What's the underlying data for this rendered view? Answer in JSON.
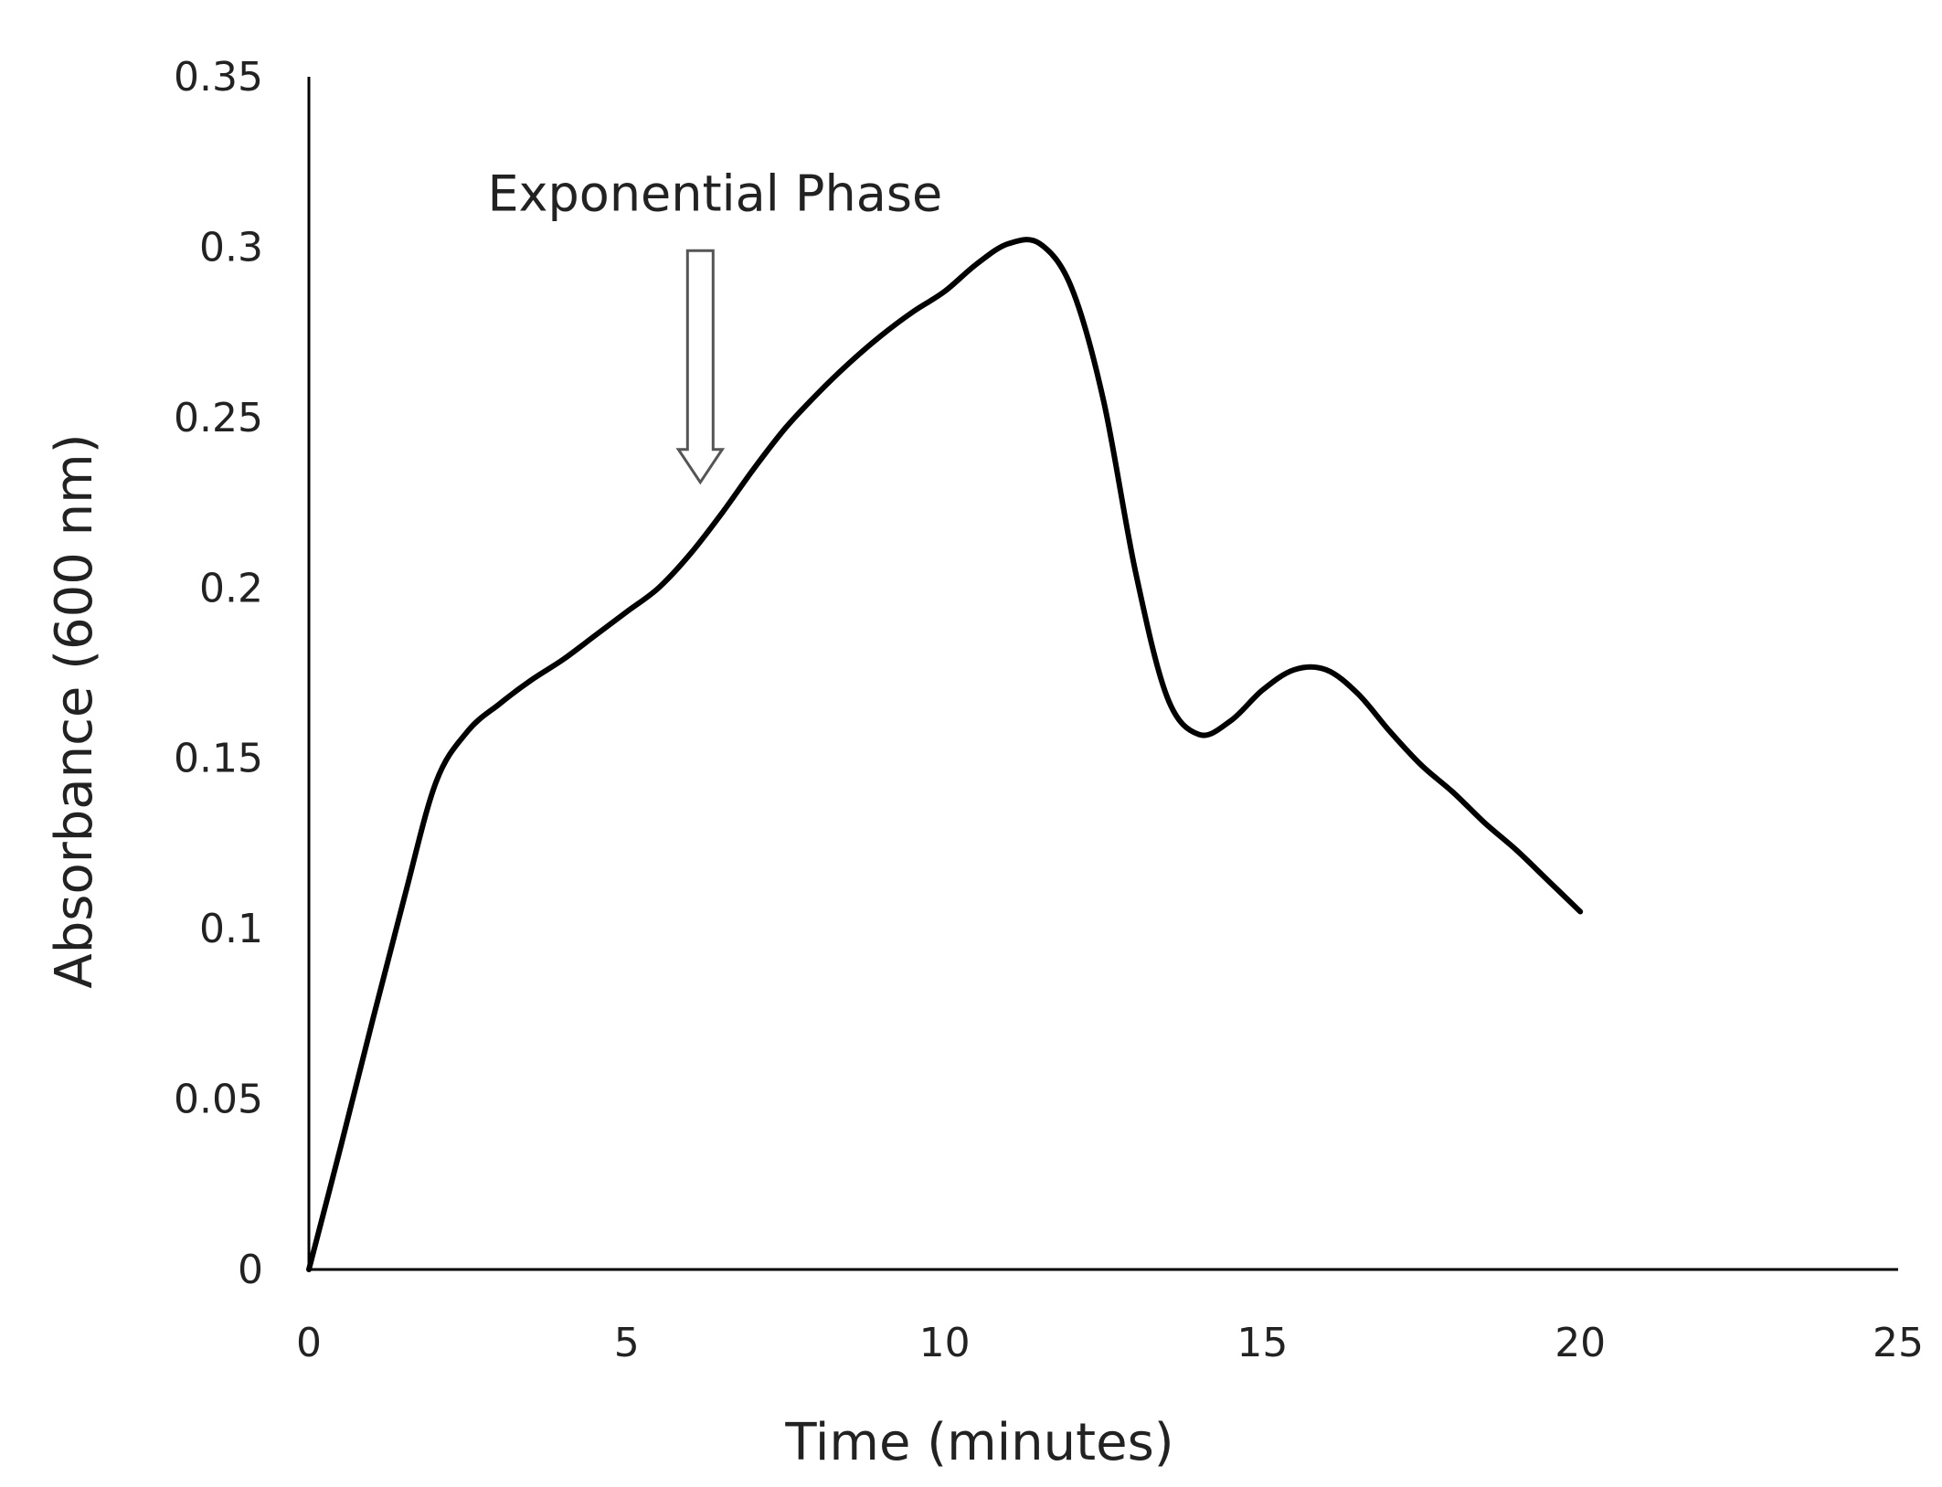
{
  "chart_data": {
    "type": "line",
    "title": "",
    "xlabel": "Time (minutes)",
    "ylabel": "Absorbance (600 nm)",
    "xlim": [
      0,
      25
    ],
    "ylim": [
      0,
      0.35
    ],
    "xticks": [
      0,
      5,
      10,
      15,
      20,
      25
    ],
    "xtick_labels": [
      "0",
      "5",
      "10",
      "15",
      "20",
      "25"
    ],
    "yticks": [
      0,
      0.05,
      0.1,
      0.15,
      0.2,
      0.25,
      0.3,
      0.35
    ],
    "ytick_labels": [
      "0",
      "0.05",
      "0.1",
      "0.15",
      "0.2",
      "0.25",
      "0.3",
      "0.35"
    ],
    "grid": false,
    "legend": "none",
    "series": [
      {
        "name": "Absorbance",
        "color": "#000000",
        "x": [
          0,
          0.5,
          1,
          1.5,
          2,
          2.5,
          3,
          3.5,
          4,
          4.5,
          5,
          5.5,
          6,
          6.5,
          7,
          7.5,
          8,
          8.5,
          9,
          9.5,
          10,
          10.5,
          11,
          11.5,
          12,
          12.5,
          13,
          13.5,
          14,
          14.5,
          15,
          15.5,
          16,
          16.5,
          17,
          17.5,
          18,
          18.5,
          19,
          19.5,
          20
        ],
        "y": [
          0,
          0.036,
          0.073,
          0.109,
          0.143,
          0.158,
          0.166,
          0.173,
          0.179,
          0.186,
          0.193,
          0.2,
          0.21,
          0.222,
          0.235,
          0.247,
          0.257,
          0.266,
          0.274,
          0.281,
          0.287,
          0.295,
          0.301,
          0.301,
          0.288,
          0.255,
          0.205,
          0.168,
          0.157,
          0.161,
          0.17,
          0.176,
          0.176,
          0.169,
          0.158,
          0.148,
          0.14,
          0.131,
          0.123,
          0.114,
          0.105
        ]
      }
    ],
    "annotations": [
      {
        "text": "Exponential Phase",
        "x": 6.1,
        "y": 0.3155,
        "arrow_to": [
          6.1,
          0.231
        ],
        "arrow_from": [
          6.1,
          0.299
        ]
      }
    ]
  }
}
